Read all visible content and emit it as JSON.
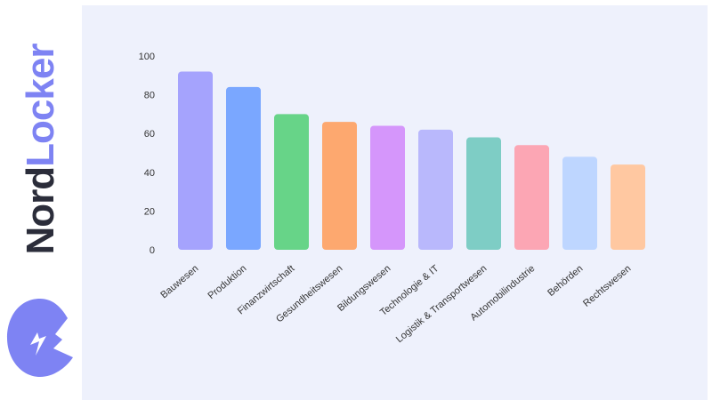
{
  "brand": {
    "part1": "Nord",
    "part2": "Locker",
    "icon": "nordlocker-logo-icon",
    "colors": {
      "dark": "#2b2d3a",
      "accent": "#7e83f3"
    }
  },
  "chart_data": {
    "type": "bar",
    "title": "",
    "xlabel": "",
    "ylabel": "",
    "ylim": [
      0,
      100
    ],
    "yticks": [
      0,
      20,
      40,
      60,
      80,
      100
    ],
    "grid": false,
    "categories": [
      "Bauwesen",
      "Produktion",
      "Finanzwirtschaft",
      "Gesundheitswesen",
      "Bildungswesen",
      "Technologie & IT",
      "Logistik & Transportwesen",
      "Automobilindustrie",
      "Behörden",
      "Rechtswesen"
    ],
    "values": [
      92,
      84,
      70,
      66,
      64,
      62,
      58,
      54,
      48,
      44
    ],
    "colors": [
      "#a5a3fd",
      "#7aa7ff",
      "#67d488",
      "#fda86f",
      "#d596fb",
      "#b9b8fc",
      "#7ecdc5",
      "#fca6b4",
      "#bed6ff",
      "#ffc8a1"
    ]
  }
}
